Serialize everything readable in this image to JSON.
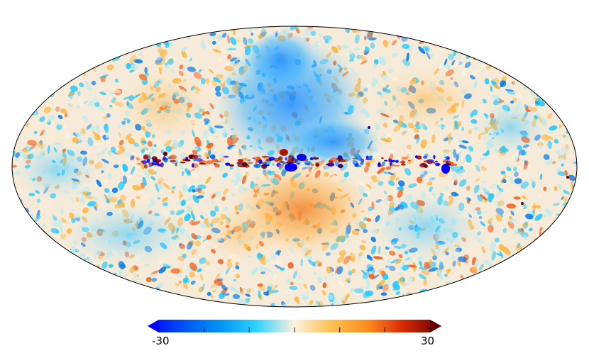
{
  "map": {
    "projection": "mollweide",
    "colormap": "planck",
    "colormap_colors": [
      "#0000ff",
      "#0078f0",
      "#1ec8ff",
      "#bdebf0",
      "#fff1dc",
      "#ffb43c",
      "#f55a14",
      "#b40f00",
      "#640000"
    ],
    "scale_min": -30,
    "scale_max": 30
  },
  "colorbar": {
    "min_label": "-30",
    "max_label": "30",
    "tick_count": 7,
    "extend": "both"
  }
}
